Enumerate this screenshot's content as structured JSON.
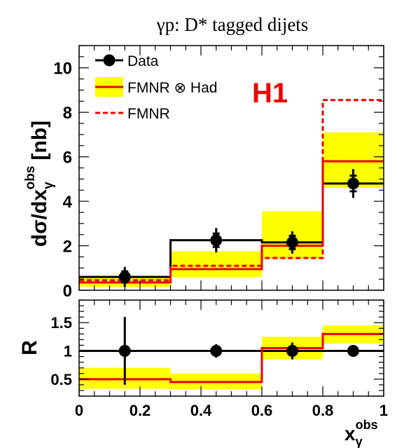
{
  "chart_data": [
    {
      "type": "step",
      "title": "γp:  D* tagged dijets",
      "ylabel": "dσ/dx",
      "ylabel_sup": "obs",
      "ylabel_sub": "γ",
      "ylabel_unit": "[nb]",
      "label": "H1",
      "xlim": [
        0,
        1
      ],
      "ylim": [
        0,
        11
      ],
      "y_ticks": [
        0,
        2,
        4,
        6,
        8,
        10
      ],
      "bins": [
        [
          0,
          0.3
        ],
        [
          0.3,
          0.6
        ],
        [
          0.6,
          0.8
        ],
        [
          0.8,
          1.0
        ]
      ],
      "legend": {
        "position": "top-left",
        "entries": [
          "Data",
          "FMNR ⊗ Had",
          "FMNR"
        ]
      },
      "series": [
        {
          "name": "Data",
          "style": "points",
          "points": [
            {
              "x": 0.15,
              "y": 0.6,
              "err_stat": 0.25,
              "err_tot": 0.45
            },
            {
              "x": 0.45,
              "y": 2.25,
              "err_stat": 0.3,
              "err_tot": 0.55
            },
            {
              "x": 0.7,
              "y": 2.15,
              "err_stat": 0.3,
              "err_tot": 0.5
            },
            {
              "x": 0.9,
              "y": 4.8,
              "err_stat": 0.35,
              "err_tot": 0.65
            }
          ],
          "hist": [
            0.6,
            2.25,
            2.15,
            4.8
          ]
        },
        {
          "name": "FMNR ⊗ Had",
          "style": "step_band",
          "values": [
            0.35,
            0.95,
            2.0,
            5.8
          ],
          "band_low": [
            0.15,
            0.6,
            1.4,
            4.6
          ],
          "band_high": [
            0.55,
            1.75,
            3.55,
            7.1
          ]
        },
        {
          "name": "FMNR",
          "style": "dashed_step",
          "values": [
            0.45,
            1.1,
            1.45,
            8.55
          ]
        }
      ]
    },
    {
      "type": "step",
      "ylabel": "R",
      "xlabel": "x",
      "xlabel_sup": "obs",
      "xlabel_sub": "γ",
      "xlim": [
        0,
        1
      ],
      "ylim": [
        0.2,
        1.9
      ],
      "y_ticks": [
        0.5,
        1,
        1.5
      ],
      "y_tick_labels": [
        "0.5",
        "1",
        "1.5"
      ],
      "x_ticks": [
        0,
        0.2,
        0.4,
        0.6,
        0.8,
        1
      ],
      "x_tick_labels": [
        "0",
        "0.2",
        "0.4",
        "0.6",
        "0.8",
        "1"
      ],
      "bins": [
        [
          0,
          0.3
        ],
        [
          0.3,
          0.6
        ],
        [
          0.6,
          0.8
        ],
        [
          0.8,
          1.0
        ]
      ],
      "series": [
        {
          "style": "points",
          "points": [
            {
              "x": 0.15,
              "y": 1.0,
              "err_tot": 0.6
            },
            {
              "x": 0.45,
              "y": 1.0,
              "err_tot": 0.12
            },
            {
              "x": 0.7,
              "y": 1.0,
              "err_tot": 0.15
            },
            {
              "x": 0.9,
              "y": 1.0,
              "err_tot": 0.0
            }
          ],
          "reference_line": 1.0
        },
        {
          "style": "step_band",
          "values": [
            0.5,
            0.45,
            1.05,
            1.3
          ],
          "band_low": [
            0.33,
            0.32,
            0.85,
            1.13
          ],
          "band_high": [
            0.7,
            0.6,
            1.25,
            1.45
          ]
        }
      ]
    }
  ]
}
